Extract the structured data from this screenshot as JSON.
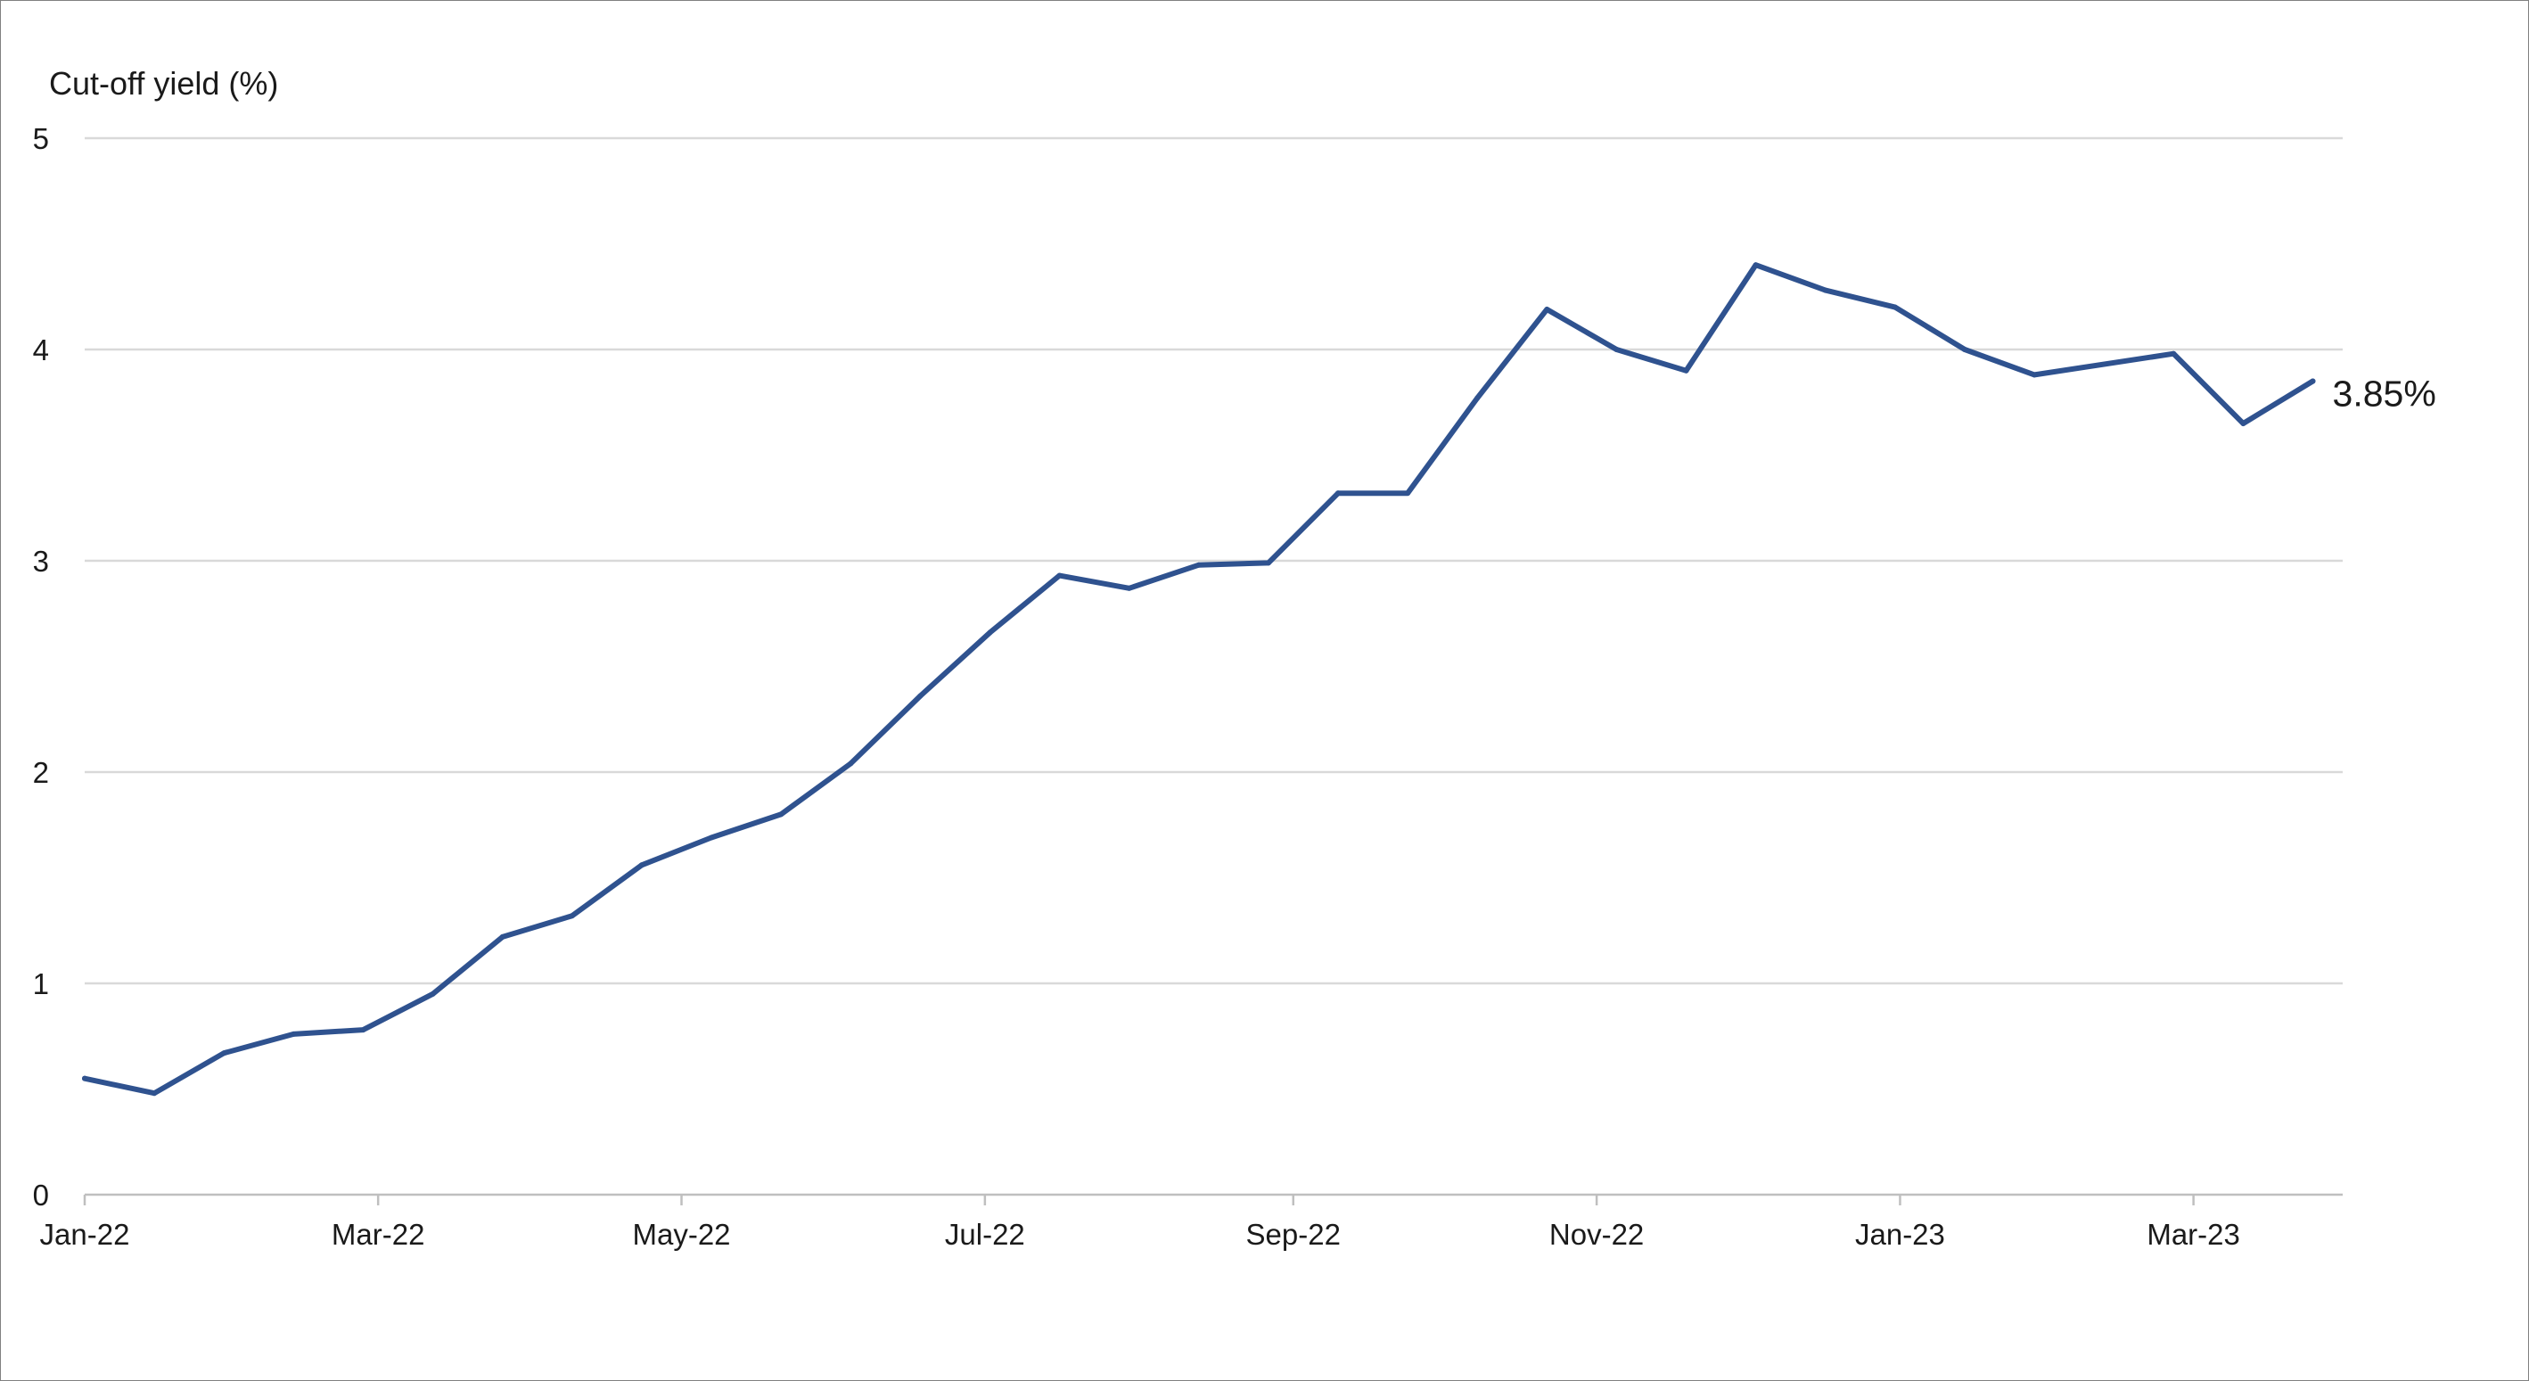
{
  "chart_data": {
    "type": "line",
    "ylabel": "Cut-off yield (%)",
    "xlabel": "",
    "title": "",
    "ylim": [
      0,
      5
    ],
    "yticks": [
      0,
      1,
      2,
      3,
      4,
      5
    ],
    "xlim": [
      "2022-01-01",
      "2023-03-31"
    ],
    "xticks": [
      {
        "date": "2022-01-01",
        "label": "Jan-22"
      },
      {
        "date": "2022-03-01",
        "label": "Mar-22"
      },
      {
        "date": "2022-05-01",
        "label": "May-22"
      },
      {
        "date": "2022-07-01",
        "label": "Jul-22"
      },
      {
        "date": "2022-09-01",
        "label": "Sep-22"
      },
      {
        "date": "2022-11-01",
        "label": "Nov-22"
      },
      {
        "date": "2023-01-01",
        "label": "Jan-23"
      },
      {
        "date": "2023-03-01",
        "label": "Mar-23"
      }
    ],
    "grid": true,
    "line_color": "#2f528f",
    "end_label": "3.85%",
    "series": [
      {
        "points": [
          {
            "x": "2022-01-01",
            "y": 0.55
          },
          {
            "x": "2022-01-15",
            "y": 0.48
          },
          {
            "x": "2022-01-29",
            "y": 0.67
          },
          {
            "x": "2022-02-12",
            "y": 0.76
          },
          {
            "x": "2022-02-26",
            "y": 0.78
          },
          {
            "x": "2022-03-12",
            "y": 0.95
          },
          {
            "x": "2022-03-26",
            "y": 1.22
          },
          {
            "x": "2022-04-09",
            "y": 1.32
          },
          {
            "x": "2022-04-23",
            "y": 1.56
          },
          {
            "x": "2022-05-07",
            "y": 1.69
          },
          {
            "x": "2022-05-21",
            "y": 1.8
          },
          {
            "x": "2022-06-04",
            "y": 2.04
          },
          {
            "x": "2022-06-18",
            "y": 2.36
          },
          {
            "x": "2022-07-02",
            "y": 2.66
          },
          {
            "x": "2022-07-16",
            "y": 2.93
          },
          {
            "x": "2022-07-30",
            "y": 2.87
          },
          {
            "x": "2022-08-13",
            "y": 2.98
          },
          {
            "x": "2022-08-27",
            "y": 2.99
          },
          {
            "x": "2022-09-10",
            "y": 3.32
          },
          {
            "x": "2022-09-24",
            "y": 3.32
          },
          {
            "x": "2022-10-08",
            "y": 3.77
          },
          {
            "x": "2022-10-22",
            "y": 4.19
          },
          {
            "x": "2022-11-05",
            "y": 4.0
          },
          {
            "x": "2022-11-19",
            "y": 3.9
          },
          {
            "x": "2022-12-03",
            "y": 4.4
          },
          {
            "x": "2022-12-17",
            "y": 4.28
          },
          {
            "x": "2022-12-31",
            "y": 4.2
          },
          {
            "x": "2023-01-14",
            "y": 4.0
          },
          {
            "x": "2023-01-28",
            "y": 3.88
          },
          {
            "x": "2023-02-25",
            "y": 3.98
          },
          {
            "x": "2023-03-11",
            "y": 3.65
          },
          {
            "x": "2023-03-25",
            "y": 3.85
          }
        ]
      }
    ]
  }
}
